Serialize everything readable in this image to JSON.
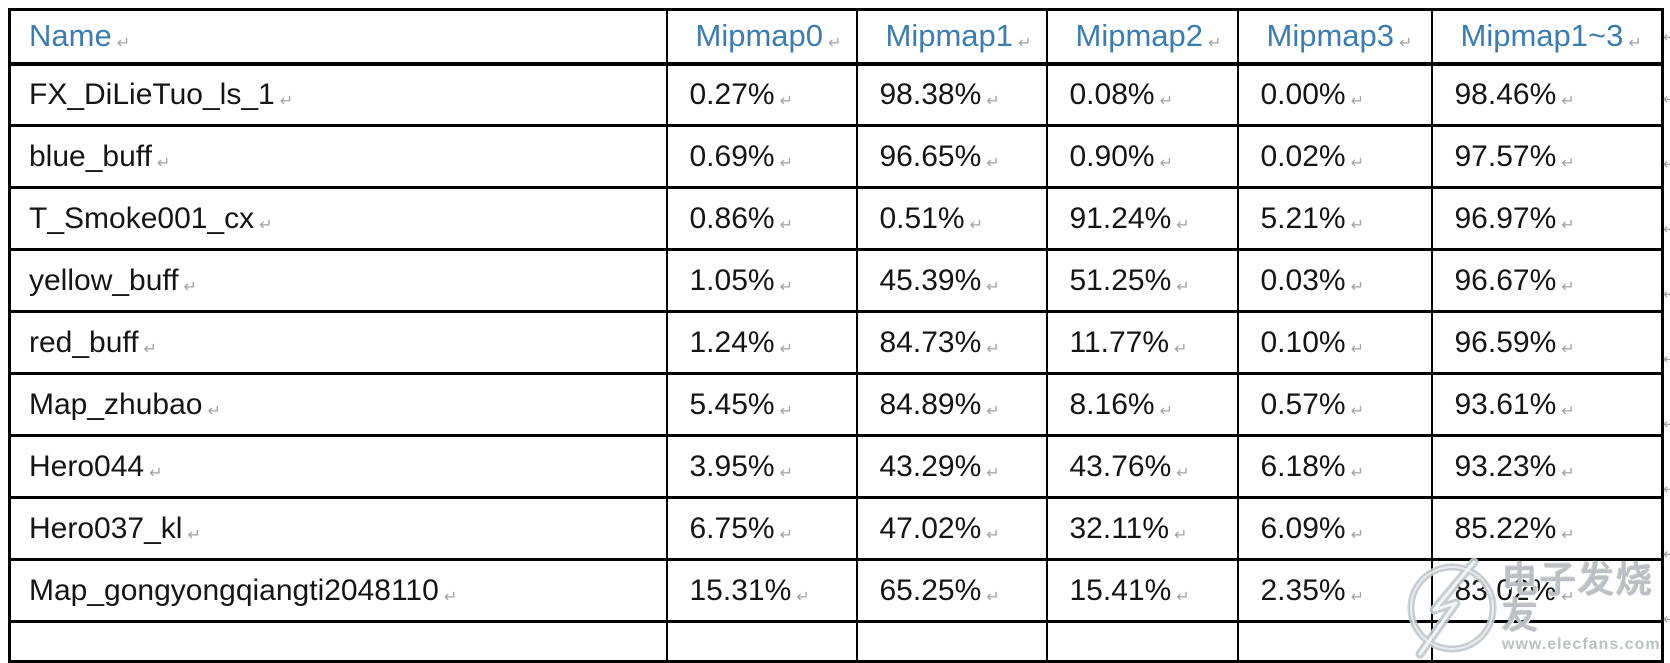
{
  "table": {
    "columns": [
      "Name",
      "Mipmap0",
      "Mipmap1",
      "Mipmap2",
      "Mipmap3",
      "Mipmap1~3"
    ],
    "rows": [
      {
        "name": "FX_DiLieTuo_ls_1",
        "values": [
          "0.27%",
          "98.38%",
          "0.08%",
          "0.00%",
          "98.46%"
        ]
      },
      {
        "name": "blue_buff",
        "values": [
          "0.69%",
          "96.65%",
          "0.90%",
          "0.02%",
          "97.57%"
        ]
      },
      {
        "name": "T_Smoke001_cx",
        "values": [
          "0.86%",
          "0.51%",
          "91.24%",
          "5.21%",
          "96.97%"
        ]
      },
      {
        "name": "yellow_buff",
        "values": [
          "1.05%",
          "45.39%",
          "51.25%",
          "0.03%",
          "96.67%"
        ]
      },
      {
        "name": "red_buff",
        "values": [
          "1.24%",
          "84.73%",
          "11.77%",
          "0.10%",
          "96.59%"
        ]
      },
      {
        "name": "Map_zhubao",
        "values": [
          "5.45%",
          "84.89%",
          "8.16%",
          "0.57%",
          "93.61%"
        ]
      },
      {
        "name": "Hero044",
        "values": [
          "3.95%",
          "43.29%",
          "43.76%",
          "6.18%",
          "93.23%"
        ]
      },
      {
        "name": "Hero037_kl",
        "values": [
          "6.75%",
          "47.02%",
          "32.11%",
          "6.09%",
          "85.22%"
        ]
      },
      {
        "name": "Map_gongyongqiangti2048110",
        "values": [
          "15.31%",
          "65.25%",
          "15.41%",
          "2.35%",
          "83.02%"
        ]
      }
    ]
  },
  "marks": {
    "cell_end": "↵"
  },
  "watermark": {
    "site_name": "电子发烧友",
    "site_url": "www.elecfans.com"
  },
  "colors": {
    "header_text": "#3d7cae",
    "body_text": "#151515",
    "border": "#000000",
    "formatting_mark": "#a3a3a3",
    "watermark": "#bcc0c4"
  }
}
